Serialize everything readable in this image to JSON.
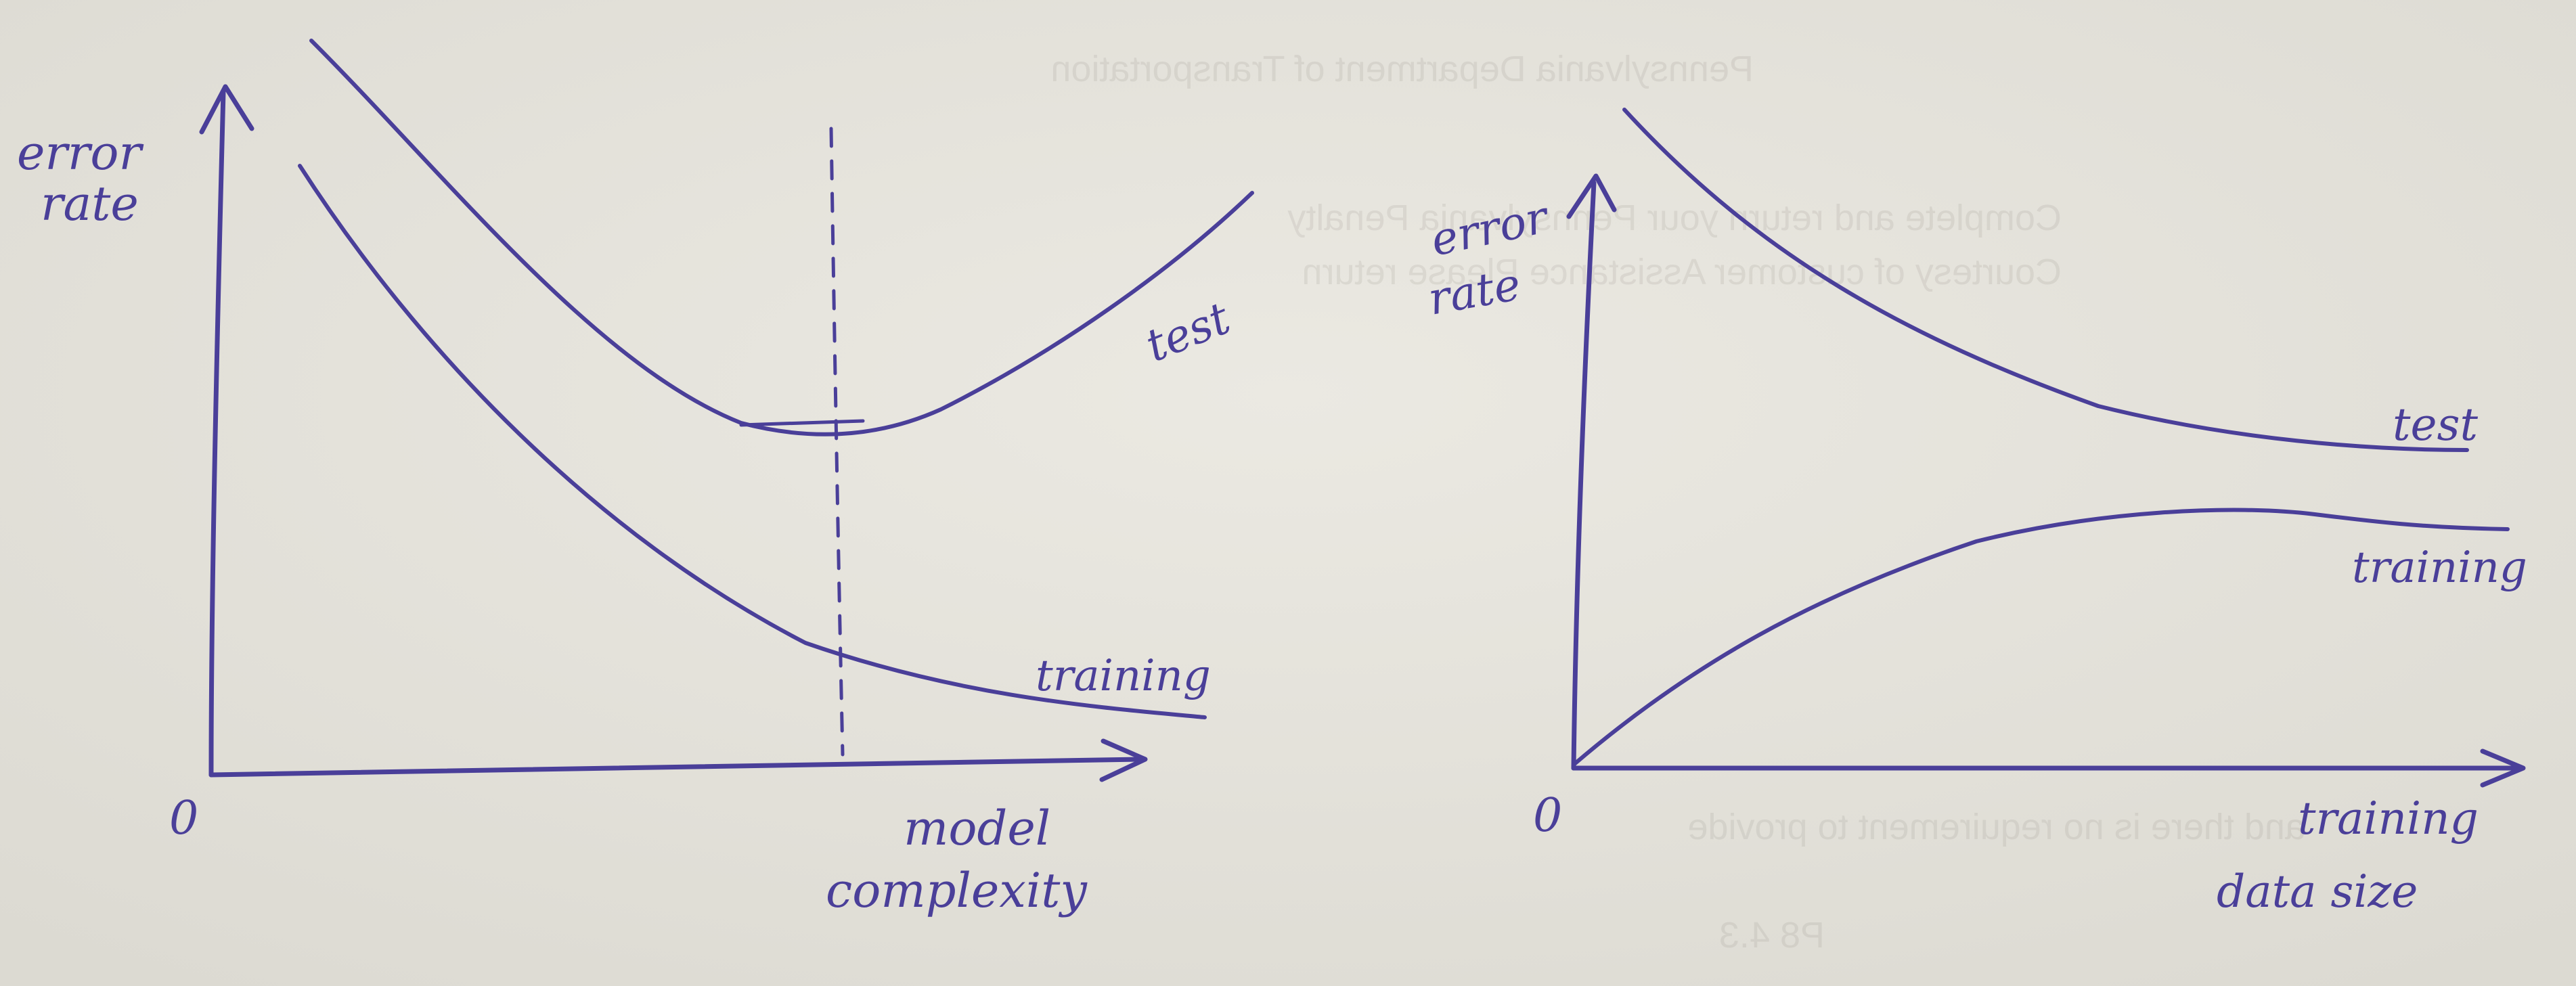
{
  "style": {
    "ink_color": "#4a3f99",
    "paper_color": "#e8e6df",
    "paper_shade_color": "#dcdad2"
  },
  "background": {
    "show_through_lines": [
      "Pennsylvania Department of Transportation",
      "Complete and return your Pennsylvania Penalty",
      "Courtesy of customer Assistance Please return",
      "and there is no requirement to provide",
      "P8 4.3"
    ]
  },
  "left_diagram": {
    "y_axis_label_line1": "error",
    "y_axis_label_line2": "rate",
    "origin_label": "0",
    "x_axis_label_line1": "model",
    "x_axis_label_line2": "complexity",
    "curves": [
      {
        "name": "test",
        "label": "test",
        "shape": "U-shaped, minimum at the dashed line"
      },
      {
        "name": "training",
        "label": "training",
        "shape": "monotonically decreasing"
      }
    ],
    "marker": "dashed vertical line at the test-error minimum"
  },
  "right_diagram": {
    "y_axis_label_line1": "error",
    "y_axis_label_line2": "rate",
    "origin_label": "0",
    "x_axis_label_line1": "training",
    "x_axis_label_line2": "data size",
    "curves": [
      {
        "name": "test",
        "label": "test",
        "shape": "decreasing, flattening out"
      },
      {
        "name": "training",
        "label": "training",
        "shape": "increasing from 0, flattening out"
      }
    ]
  }
}
